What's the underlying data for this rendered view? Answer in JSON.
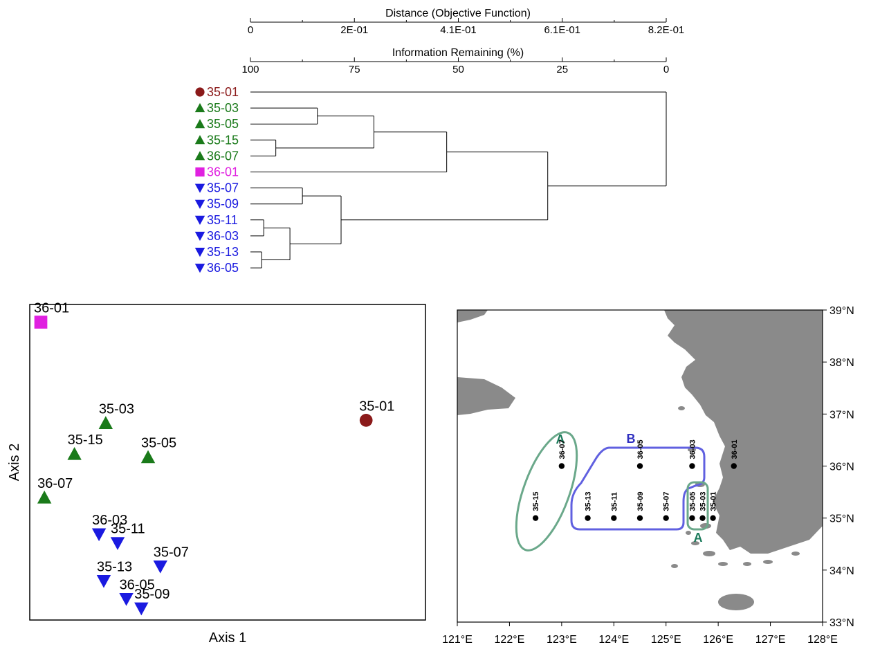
{
  "chart_data": [
    {
      "type": "dendrogram",
      "top_axis": {
        "label": "Distance (Objective Function)",
        "ticks": [
          "0",
          "2E-01",
          "4.1E-01",
          "6.1E-01",
          "8.2E-01"
        ]
      },
      "second_axis": {
        "label": "Information Remaining (%)",
        "ticks": [
          "100",
          "75",
          "50",
          "25",
          "0"
        ]
      },
      "leaves": [
        {
          "label": "35-01",
          "group": "maroon"
        },
        {
          "label": "35-03",
          "group": "green"
        },
        {
          "label": "35-05",
          "group": "green"
        },
        {
          "label": "35-15",
          "group": "green"
        },
        {
          "label": "36-07",
          "group": "green"
        },
        {
          "label": "36-01",
          "group": "magenta"
        },
        {
          "label": "35-07",
          "group": "blue"
        },
        {
          "label": "35-09",
          "group": "blue"
        },
        {
          "label": "35-11",
          "group": "blue"
        },
        {
          "label": "36-03",
          "group": "blue"
        },
        {
          "label": "35-13",
          "group": "blue"
        },
        {
          "label": "36-05",
          "group": "blue"
        }
      ],
      "merges_info_remaining_pct": [
        {
          "a": "35-13",
          "b": "36-05",
          "level": 97.3
        },
        {
          "a": "35-15",
          "b": "36-07",
          "level": 93.9
        },
        {
          "a": "35-11",
          "b": "36-03",
          "level": 96.8
        },
        {
          "a": "[35-11,36-03]",
          "b": "[35-13,36-05]",
          "level": 90.5
        },
        {
          "a": "35-07",
          "b": "35-09",
          "level": 87.5
        },
        {
          "a": "35-03",
          "b": "35-05",
          "level": 83.9
        },
        {
          "a": "[35-07,35-09]",
          "b": "[35-11,36-03,35-13,36-05]",
          "level": 78.2
        },
        {
          "a": "[35-03,35-05]",
          "b": "[35-15,36-07]",
          "level": 70.3
        },
        {
          "a": "[35-03,35-05,35-15,36-07]",
          "b": "36-01",
          "level": 52.8
        },
        {
          "a": "green+magenta",
          "b": "blue",
          "level": 28.5
        },
        {
          "a": "35-01",
          "b": "all others",
          "level": 0
        }
      ]
    },
    {
      "type": "scatter",
      "xlabel": "Axis 1",
      "ylabel": "Axis 2",
      "xlim": [
        0,
        100
      ],
      "ylim": [
        0,
        100
      ],
      "points": [
        {
          "label": "36-01",
          "x": 2.8,
          "y": 94.4,
          "group": "magenta"
        },
        {
          "label": "35-01",
          "x": 85.0,
          "y": 63.3,
          "group": "maroon"
        },
        {
          "label": "35-03",
          "x": 19.2,
          "y": 62.4,
          "group": "green"
        },
        {
          "label": "35-15",
          "x": 11.3,
          "y": 52.6,
          "group": "green"
        },
        {
          "label": "35-05",
          "x": 29.9,
          "y": 51.6,
          "group": "green"
        },
        {
          "label": "36-07",
          "x": 3.7,
          "y": 38.8,
          "group": "green"
        },
        {
          "label": "36-03",
          "x": 17.5,
          "y": 27.2,
          "group": "blue"
        },
        {
          "label": "35-11",
          "x": 22.2,
          "y": 24.4,
          "group": "blue"
        },
        {
          "label": "35-07",
          "x": 33.0,
          "y": 17.0,
          "group": "blue"
        },
        {
          "label": "35-13",
          "x": 18.7,
          "y": 12.4,
          "group": "blue"
        },
        {
          "label": "36-05",
          "x": 24.4,
          "y": 6.7,
          "group": "blue"
        },
        {
          "label": "35-09",
          "x": 28.2,
          "y": 3.7,
          "group": "blue"
        }
      ]
    },
    {
      "type": "map",
      "lon_ticks": [
        "121°E",
        "122°E",
        "123°E",
        "124°E",
        "125°E",
        "126°E",
        "127°E",
        "128°E"
      ],
      "lat_ticks": [
        "33°N",
        "34°N",
        "35°N",
        "36°N",
        "37°N",
        "38°N",
        "39°N"
      ],
      "lon_range": [
        121,
        128
      ],
      "lat_range": [
        33,
        39
      ],
      "stations": [
        {
          "label": "35-15",
          "lon": 122.5,
          "lat": 35.0
        },
        {
          "label": "35-13",
          "lon": 123.5,
          "lat": 35.0
        },
        {
          "label": "35-11",
          "lon": 124.0,
          "lat": 35.0
        },
        {
          "label": "35-09",
          "lon": 124.5,
          "lat": 35.0
        },
        {
          "label": "35-07",
          "lon": 125.0,
          "lat": 35.0
        },
        {
          "label": "35-05",
          "lon": 125.5,
          "lat": 35.0
        },
        {
          "label": "35-03",
          "lon": 125.7,
          "lat": 35.0
        },
        {
          "label": "35-01",
          "lon": 125.9,
          "lat": 35.0
        },
        {
          "label": "36-07",
          "lon": 123.0,
          "lat": 36.0
        },
        {
          "label": "36-05",
          "lon": 124.5,
          "lat": 36.0
        },
        {
          "label": "36-03",
          "lon": 125.5,
          "lat": 36.0
        },
        {
          "label": "36-01",
          "lon": 126.3,
          "lat": 36.0
        }
      ],
      "group_labels": {
        "A_west": "A",
        "B": "B",
        "A_south": "A"
      }
    }
  ],
  "colors": {
    "maroon": "#8b1a1a",
    "green": "#1a7a1a",
    "magenta": "#e020e0",
    "blue": "#1a1ae0",
    "land": "#8a8a8a",
    "groupA": "#6aa88a",
    "groupB": "#6060e0"
  }
}
